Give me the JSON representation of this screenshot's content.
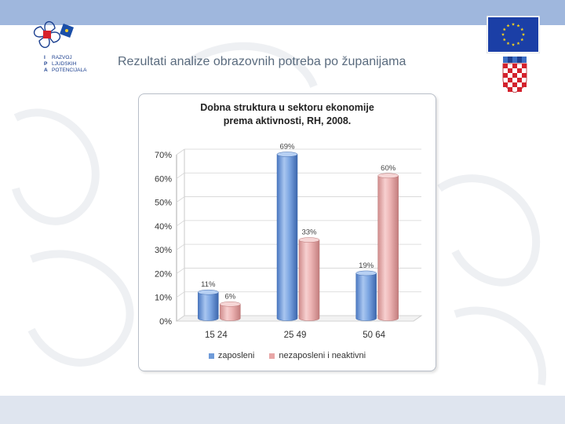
{
  "slide": {
    "title": "Rezultati analize obrazovnih potreba po županijama"
  },
  "logo": {
    "rows": [
      {
        "letter": "I",
        "word": "RAZVOJ"
      },
      {
        "letter": "P",
        "word": "LJUDSKIH"
      },
      {
        "letter": "A",
        "word": "POTENCIJALA"
      }
    ]
  },
  "colors": {
    "top_band": "#9fb7dd",
    "bottom_band": "#dfe5ef",
    "series_employed": "#6f9bd9",
    "series_unemployed": "#e8a6a6"
  },
  "chart_data": {
    "type": "bar",
    "title": "Dobna struktura u sektoru ekonomije prema aktivnosti, RH, 2008.",
    "title_lines": [
      "Dobna struktura u sektoru ekonomije",
      "prema aktivnosti, RH, 2008."
    ],
    "categories": [
      "15 24",
      "25 49",
      "50 64"
    ],
    "series": [
      {
        "name": "zaposleni",
        "values": [
          11,
          69,
          19
        ],
        "labels": [
          "11%",
          "69%",
          "19%"
        ]
      },
      {
        "name": "nezaposleni i neaktivni",
        "values": [
          6,
          33,
          60
        ],
        "labels": [
          "6%",
          "33%",
          "60%"
        ]
      }
    ],
    "ylim": [
      0,
      70
    ],
    "yticks": [
      0,
      10,
      20,
      30,
      40,
      50,
      60,
      70
    ],
    "ytick_labels": [
      "0%",
      "10%",
      "20%",
      "30%",
      "40%",
      "50%",
      "60%",
      "70%"
    ],
    "grid": true,
    "legend_position": "bottom",
    "style": "3d cylinder"
  }
}
